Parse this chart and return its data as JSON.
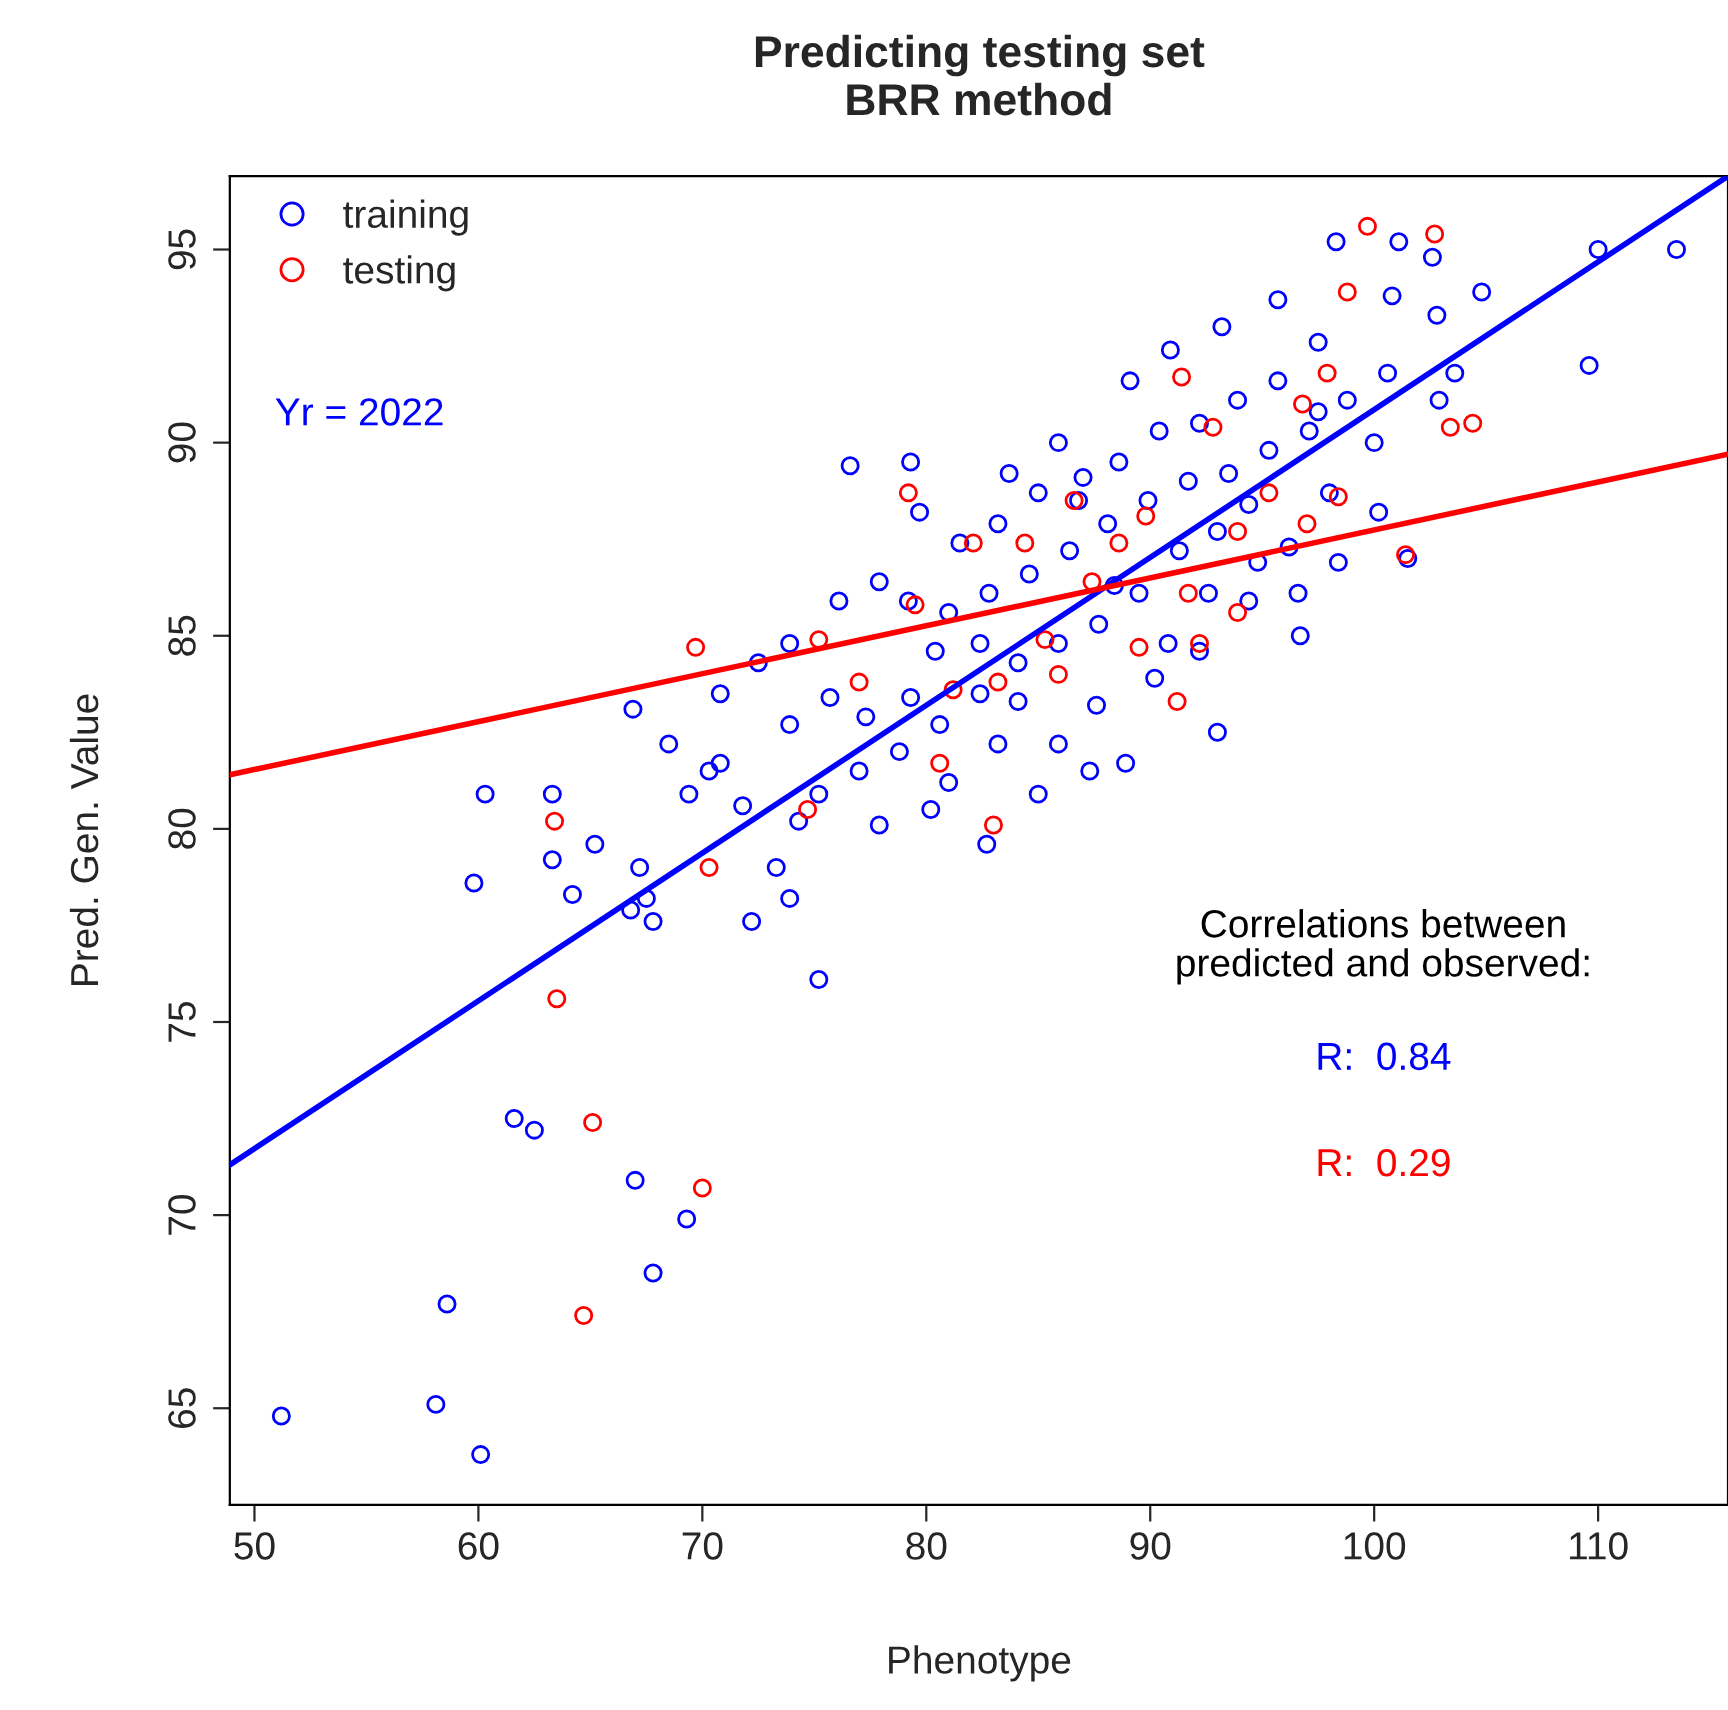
{
  "chart_data": {
    "type": "scatter",
    "title": "Predicting testing set\nBRR method",
    "xlabel": "Phenotype",
    "ylabel": "Pred. Gen. Value",
    "xlim": [
      48.9,
      115.8
    ],
    "ylim": [
      62.5,
      96.9
    ],
    "xticks": [
      50,
      60,
      70,
      80,
      90,
      100,
      110
    ],
    "yticks": [
      65,
      70,
      75,
      80,
      85,
      90,
      95
    ],
    "grid": false,
    "legend": "top left",
    "annotations": [
      "Yr = 2022",
      "Correlations between\npredicted and observed:",
      "R:  0.84",
      "R:  0.29"
    ],
    "series": [
      {
        "name": "training",
        "marker": "circle",
        "color": "#0000ff",
        "x": [
          51.2,
          58.1,
          58.6,
          60.1,
          61.6,
          62.5,
          59.8,
          60.3,
          63.3,
          63.3,
          64.2,
          65.2,
          67.0,
          67.8,
          69.3,
          66.9,
          67.2,
          67.8,
          67.5,
          66.8,
          75.2,
          80.2,
          82.7,
          76.6,
          87.0,
          88.4,
          88.9,
          93.0,
          110,
          113.5,
          109.6,
          93.2,
          98.3,
          101.1,
          102.6,
          104.8,
          102.8,
          103.6,
          100.8,
          101.5,
          96.7,
          70.3,
          71.8,
          72.2,
          73.9,
          73.3,
          77.9,
          73.9,
          75.7,
          77.3,
          79.3,
          80.4,
          82.4,
          84.1,
          85.9,
          87.6,
          90.2,
          92.2,
          94.4,
          96.2,
          98.0,
          100.0,
          97.5,
          95.7,
          93.9,
          92.2,
          90.4,
          88.6,
          86.8,
          85.0,
          83.2,
          81.5,
          79.7,
          77.9,
          76.1,
          73.9,
          72.5,
          70.8,
          79.2,
          81.0,
          82.8,
          84.6,
          86.4,
          88.1,
          89.9,
          91.7,
          93.5,
          95.3,
          97.1,
          98.8,
          100.6,
          102.9,
          100.2,
          98.4,
          96.6,
          94.8,
          93.0,
          91.3,
          89.5,
          87.7,
          85.9,
          84.1,
          82.4,
          80.6,
          78.8,
          77.0,
          83.2,
          85.0,
          87.3,
          81.0,
          92.6,
          90.8,
          94.4,
          89.1,
          90.9,
          95.7,
          97.5,
          85.9,
          83.7,
          79.3,
          70.8,
          69.4,
          68.5,
          75.2,
          74.3
        ],
        "values": [
          64.8,
          65.1,
          67.7,
          63.8,
          72.5,
          72.2,
          78.6,
          80.9,
          80.9,
          79.2,
          78.3,
          79.6,
          70.9,
          68.5,
          69.9,
          83.1,
          79.0,
          77.6,
          78.2,
          77.9,
          76.1,
          80.5,
          79.6,
          89.4,
          89.1,
          86.3,
          81.7,
          82.5,
          95.0,
          95.0,
          92.0,
          93.0,
          95.2,
          95.2,
          94.8,
          93.9,
          93.3,
          91.8,
          93.8,
          87.0,
          85.0,
          81.5,
          80.6,
          77.6,
          78.2,
          79.0,
          80.1,
          82.7,
          83.4,
          82.9,
          83.4,
          84.6,
          83.5,
          83.3,
          82.2,
          83.2,
          83.9,
          84.6,
          85.9,
          87.3,
          88.7,
          90.0,
          90.8,
          91.6,
          91.1,
          90.5,
          90.3,
          89.5,
          88.5,
          88.7,
          87.9,
          87.4,
          88.2,
          86.4,
          85.9,
          84.8,
          84.3,
          83.5,
          85.9,
          85.6,
          86.1,
          86.6,
          87.2,
          87.9,
          88.5,
          89.0,
          89.2,
          89.8,
          90.3,
          91.1,
          91.8,
          91.1,
          88.2,
          86.9,
          86.1,
          86.9,
          87.7,
          87.2,
          86.1,
          85.3,
          84.8,
          84.3,
          84.8,
          82.7,
          82.0,
          81.5,
          82.2,
          80.9,
          81.5,
          81.2,
          86.1,
          84.8,
          88.4,
          91.6,
          92.4,
          93.7,
          92.6,
          90.0,
          89.2,
          89.5,
          81.7,
          80.9,
          82.2,
          80.9,
          80.2
        ]
      },
      {
        "name": "testing",
        "marker": "circle",
        "color": "#ff0000",
        "x": [
          64.7,
          70.0,
          65.1,
          63.5,
          63.4,
          69.7,
          70.3,
          74.7,
          75.2,
          79.2,
          79.5,
          81.2,
          82.1,
          83.2,
          84.4,
          85.3,
          86.6,
          87.4,
          88.6,
          89.8,
          91.4,
          92.8,
          93.9,
          95.3,
          96.8,
          97.9,
          99.7,
          102.7,
          103.4,
          104.4,
          101.4,
          98.4,
          98.8,
          92.2,
          91.2,
          85.9,
          80.6,
          77.0,
          89.5,
          91.7,
          83.0,
          93.9,
          97.0
        ],
        "values": [
          67.4,
          70.7,
          72.4,
          75.6,
          80.2,
          84.7,
          79.0,
          80.5,
          84.9,
          88.7,
          85.8,
          83.6,
          87.4,
          83.8,
          87.4,
          84.9,
          88.5,
          86.4,
          87.4,
          88.1,
          91.7,
          90.4,
          87.7,
          88.7,
          91.0,
          91.8,
          95.6,
          95.4,
          90.4,
          90.5,
          87.1,
          88.6,
          93.9,
          84.8,
          83.3,
          84.0,
          81.7,
          83.8,
          84.7,
          86.1,
          80.1,
          85.6,
          87.9
        ]
      },
      {
        "type": "line",
        "color": "#0000ff",
        "x": [
          48.9,
          115.8
        ],
        "values": [
          71.3,
          96.9
        ]
      },
      {
        "type": "line",
        "color": "#ff0000",
        "x": [
          48.9,
          115.8
        ],
        "values": [
          81.4,
          89.7
        ]
      }
    ]
  }
}
